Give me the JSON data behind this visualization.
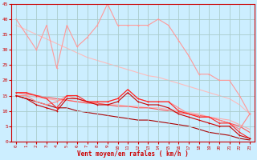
{
  "x": [
    0,
    1,
    2,
    3,
    4,
    5,
    6,
    7,
    8,
    9,
    10,
    11,
    12,
    13,
    14,
    15,
    16,
    17,
    18,
    19,
    20,
    21,
    22,
    23
  ],
  "bg_color": "#cceeff",
  "grid_color": "#aacccc",
  "text_color": "#cc0000",
  "xlabel": "Vent moyen/en rafales ( km/h )",
  "xlim": [
    -0.5,
    23.5
  ],
  "ylim": [
    0,
    45
  ],
  "xticks": [
    0,
    1,
    2,
    3,
    4,
    5,
    6,
    7,
    8,
    9,
    10,
    11,
    12,
    13,
    14,
    15,
    16,
    17,
    18,
    19,
    20,
    21,
    22,
    23
  ],
  "yticks": [
    0,
    5,
    10,
    15,
    20,
    25,
    30,
    35,
    40,
    45
  ],
  "series": [
    {
      "color": "#ff9999",
      "lw": 0.8,
      "ms": 2.0,
      "marker": true,
      "y": [
        40,
        35,
        30,
        38,
        24,
        38,
        31,
        34,
        38,
        45,
        38,
        38,
        38,
        38,
        40,
        38,
        33,
        28,
        22,
        22,
        20,
        20,
        15,
        9
      ]
    },
    {
      "color": "#ffbbbb",
      "lw": 0.8,
      "ms": 0,
      "marker": false,
      "y": [
        38,
        36.5,
        35,
        33.5,
        32,
        30.5,
        29,
        27.5,
        26.5,
        25.5,
        24.5,
        23.5,
        22.5,
        21.5,
        21,
        20,
        19,
        18,
        17,
        16,
        15,
        14,
        12,
        9
      ]
    },
    {
      "color": "#ff8888",
      "lw": 0.8,
      "ms": 2.0,
      "marker": true,
      "y": [
        15,
        15,
        13,
        12,
        13,
        15,
        14,
        13,
        13,
        13,
        14,
        17,
        14,
        13,
        13,
        13,
        11,
        9,
        8,
        8,
        7,
        6,
        4,
        9
      ]
    },
    {
      "color": "#ffaaaa",
      "lw": 0.8,
      "ms": 0,
      "marker": false,
      "y": [
        15,
        15,
        14.5,
        14,
        13.5,
        13.5,
        13,
        13,
        12.5,
        12,
        12,
        11.5,
        11.5,
        11,
        11,
        10.5,
        10,
        9.5,
        9,
        8,
        7.5,
        7,
        5.5,
        4
      ]
    },
    {
      "color": "#ff2222",
      "lw": 0.8,
      "ms": 2.0,
      "marker": true,
      "y": [
        16,
        16,
        15,
        14,
        11,
        15,
        15,
        13,
        13,
        13,
        14,
        17,
        14,
        13,
        13,
        13,
        10,
        9,
        8,
        8,
        6,
        6,
        3,
        1
      ]
    },
    {
      "color": "#ff5555",
      "lw": 0.8,
      "ms": 0,
      "marker": false,
      "y": [
        16,
        15.5,
        15,
        14.5,
        14,
        13.5,
        13,
        12.5,
        12.5,
        12,
        11.5,
        11.5,
        11,
        11,
        10.5,
        10,
        9.5,
        9,
        8.5,
        8,
        7,
        6,
        5,
        3
      ]
    },
    {
      "color": "#cc0000",
      "lw": 0.8,
      "ms": 2.0,
      "marker": true,
      "y": [
        15,
        14,
        12,
        11,
        10,
        14,
        14,
        13,
        12,
        12,
        13,
        16,
        13,
        12,
        12,
        11,
        9,
        8,
        7,
        6,
        5,
        5,
        2,
        1
      ]
    },
    {
      "color": "#aa0000",
      "lw": 0.8,
      "ms": 0,
      "marker": false,
      "y": [
        15,
        14,
        13,
        12,
        11,
        11,
        10,
        9.5,
        9,
        8.5,
        8,
        7.5,
        7,
        7,
        6.5,
        6,
        5.5,
        5,
        4,
        3,
        2.5,
        2,
        1,
        0.5
      ]
    }
  ]
}
